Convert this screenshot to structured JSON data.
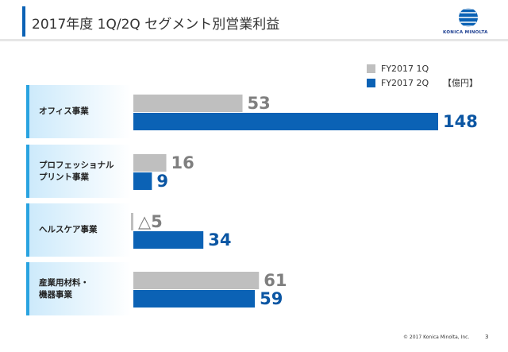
{
  "header": {
    "title": "2017年度 1Q/2Q セグメント別営業利益",
    "logo": "KONICA MINOLTA"
  },
  "chart_data": {
    "type": "bar",
    "orientation": "horizontal",
    "categories": [
      "オフィス事業",
      "プロフェッショナル\nプリント事業",
      "ヘルスケア事業",
      "産業用材料・\n機器事業"
    ],
    "unit": "【億円】",
    "series": [
      {
        "name": "FY2017 1Q",
        "color": "#bfbfbf",
        "label_color": "#7f7f7f",
        "values": [
          53,
          16,
          -5,
          61
        ],
        "value_labels": [
          "53",
          "16",
          "△5",
          "61"
        ]
      },
      {
        "name": "FY2017 2Q",
        "color": "#0b62b5",
        "label_color": "#0b56a3",
        "values": [
          148,
          9,
          34,
          59
        ]
      }
    ]
  },
  "footer": {
    "copyright": "© 2017 Konica Minolta, Inc.",
    "page": "3"
  }
}
